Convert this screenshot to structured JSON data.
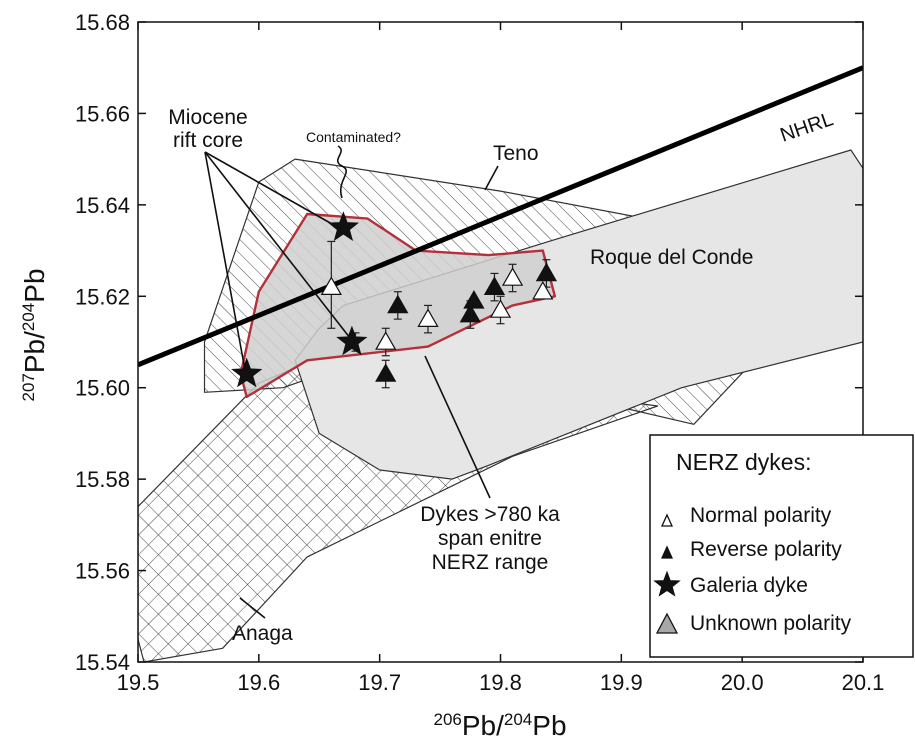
{
  "chart_data": {
    "type": "scatter",
    "xlabel_sup": "206",
    "xlabel_main": "Pb/",
    "xlabel_sup2": "204",
    "xlabel_end": "Pb",
    "ylabel_sup": "207",
    "ylabel_main": "Pb/",
    "ylabel_sup2": "204",
    "ylabel_end": "Pb",
    "xlim": [
      19.5,
      20.1
    ],
    "ylim": [
      15.54,
      15.68
    ],
    "xticks": [
      "19.5",
      "19.6",
      "19.7",
      "19.8",
      "19.9",
      "20.0",
      "20.1"
    ],
    "yticks": [
      "15.54",
      "15.56",
      "15.58",
      "15.60",
      "15.62",
      "15.64",
      "15.66",
      "15.68"
    ],
    "grid": false,
    "reference_line": {
      "label": "NHRL",
      "points": [
        [
          19.5,
          15.605
        ],
        [
          20.1,
          15.67
        ]
      ]
    },
    "fields": {
      "teno": {
        "label": "Teno",
        "polygon": [
          [
            19.555,
            15.61
          ],
          [
            19.6,
            15.645
          ],
          [
            19.63,
            15.65
          ],
          [
            19.8,
            15.643
          ],
          [
            20.0,
            15.633
          ],
          [
            20.06,
            15.62
          ],
          [
            19.96,
            15.592
          ],
          [
            19.895,
            15.596
          ],
          [
            19.75,
            15.612
          ],
          [
            19.62,
            15.6
          ],
          [
            19.555,
            15.599
          ]
        ]
      },
      "anaga": {
        "label": "Anaga",
        "polygon": [
          [
            19.5,
            15.574
          ],
          [
            19.6,
            15.601
          ],
          [
            19.69,
            15.611
          ],
          [
            19.74,
            15.603
          ],
          [
            19.93,
            15.596
          ],
          [
            19.81,
            15.585
          ],
          [
            19.64,
            15.563
          ],
          [
            19.57,
            15.543
          ],
          [
            19.505,
            15.54
          ],
          [
            19.5,
            15.545
          ]
        ]
      },
      "roque_del_conde": {
        "label": "Roque del Conde",
        "polygon": [
          [
            19.67,
            15.618
          ],
          [
            19.84,
            15.632
          ],
          [
            20.09,
            15.652
          ],
          [
            20.1,
            15.648
          ],
          [
            20.1,
            15.61
          ],
          [
            19.95,
            15.6
          ],
          [
            19.79,
            15.583
          ],
          [
            19.76,
            15.58
          ],
          [
            19.7,
            15.582
          ],
          [
            19.65,
            15.59
          ],
          [
            19.63,
            15.606
          ],
          [
            19.65,
            15.613
          ]
        ]
      },
      "nerz_range": {
        "polygon": [
          [
            19.59,
            15.598
          ],
          [
            19.64,
            15.606
          ],
          [
            19.74,
            15.609
          ],
          [
            19.81,
            15.618
          ],
          [
            19.845,
            15.62
          ],
          [
            19.835,
            15.63
          ],
          [
            19.79,
            15.629
          ],
          [
            19.73,
            15.63
          ],
          [
            19.69,
            15.637
          ],
          [
            19.64,
            15.638
          ],
          [
            19.6,
            15.621
          ],
          [
            19.585,
            15.603
          ]
        ]
      }
    },
    "series": [
      {
        "name": "Normal polarity",
        "marker": "triangle-open",
        "points": [
          [
            19.705,
            15.61
          ],
          [
            19.74,
            15.615
          ],
          [
            19.8,
            15.617
          ],
          [
            19.81,
            15.624
          ],
          [
            19.835,
            15.621
          ],
          [
            19.66,
            15.622
          ]
        ]
      },
      {
        "name": "Reverse polarity",
        "marker": "triangle-filled",
        "points": [
          [
            19.705,
            15.603
          ],
          [
            19.715,
            15.618
          ],
          [
            19.775,
            15.616
          ],
          [
            19.778,
            15.619
          ],
          [
            19.795,
            15.622
          ],
          [
            19.838,
            15.625
          ]
        ]
      },
      {
        "name": "Galeria dyke",
        "marker": "star",
        "points": [
          [
            19.59,
            15.603
          ],
          [
            19.67,
            15.635
          ],
          [
            19.677,
            15.61
          ]
        ]
      },
      {
        "name": "Unknown polarity",
        "marker": "triangle-gray",
        "points": []
      }
    ],
    "error_bars": [
      [
        19.66,
        15.613,
        15.632
      ],
      [
        19.705,
        15.607,
        15.613
      ],
      [
        19.74,
        15.612,
        15.618
      ],
      [
        19.775,
        15.613,
        15.619
      ],
      [
        19.795,
        15.619,
        15.625
      ],
      [
        19.81,
        15.621,
        15.627
      ],
      [
        19.838,
        15.622,
        15.628
      ],
      [
        19.8,
        15.614,
        15.62
      ],
      [
        19.715,
        15.615,
        15.621
      ],
      [
        19.705,
        15.6,
        15.606
      ],
      [
        19.68,
        15.608,
        15.612
      ]
    ],
    "annotations": {
      "miocene_line1": "Miocene",
      "miocene_line2": "rift core",
      "contaminated": "Contaminated?",
      "dykes_line1": "Dykes >780 ka",
      "dykes_line2": "span enitre",
      "dykes_line3": "NERZ range"
    },
    "legend": {
      "title": "NERZ dykes:",
      "position": "bottom-right"
    }
  },
  "colors": {
    "nerz_outline": "#b3313a",
    "roque_fill": "#e6e6e6",
    "nerz_fill": "#cfcfcf",
    "legend_gray_triangle": "#a8a8a8"
  }
}
